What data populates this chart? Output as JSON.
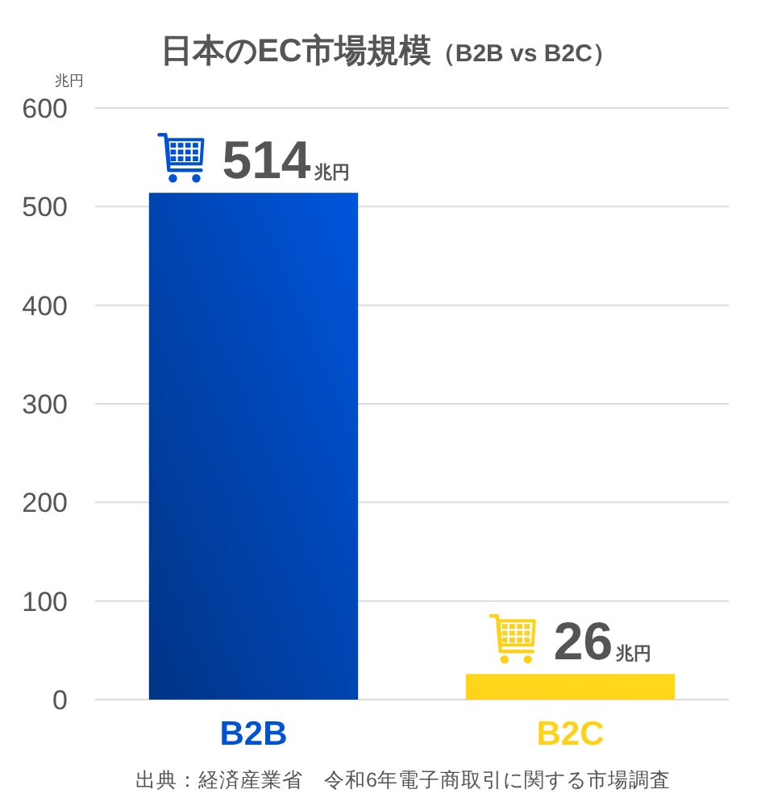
{
  "chart_data": {
    "type": "bar",
    "title": "日本のEC市場規模（B2B vs B2C）",
    "ylabel": "兆円",
    "categories": [
      "B2B",
      "B2C"
    ],
    "values": [
      514,
      26
    ],
    "colors": [
      "#0052d4",
      "#ffd21a"
    ],
    "ylim": [
      0,
      600
    ],
    "yticks": [
      0,
      100,
      200,
      300,
      400,
      500,
      600
    ],
    "grid": "y",
    "value_labels": [
      "514兆円",
      "26兆円"
    ],
    "annotations": [
      "出典：経済産業省　令和6年電子商取引に関する市場調査"
    ]
  }
}
